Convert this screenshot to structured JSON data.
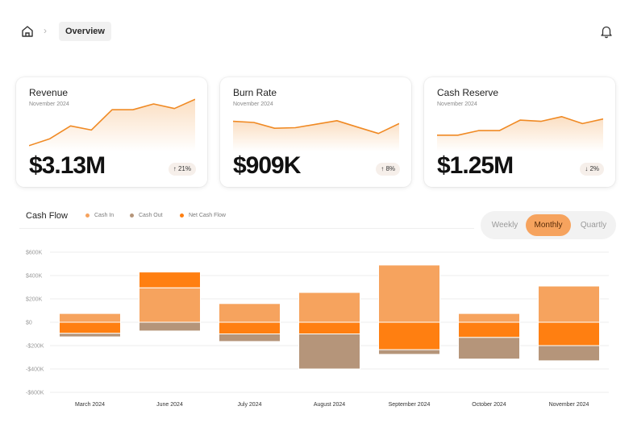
{
  "header": {
    "breadcrumb_current": "Overview",
    "icons": {
      "home": "home-icon",
      "separator": "chevron-right-icon",
      "notifications": "bell-icon"
    }
  },
  "kpis": [
    {
      "title": "Revenue",
      "subtitle": "November 2024",
      "value": "$3.13M",
      "change": "21%",
      "direction": "up",
      "arrow": "↑",
      "spark": [
        10,
        22,
        44,
        37,
        72,
        72,
        82,
        74,
        90
      ]
    },
    {
      "title": "Burn Rate",
      "subtitle": "November 2024",
      "value": "$909K",
      "change": "8%",
      "direction": "up",
      "arrow": "↑",
      "spark": [
        52,
        50,
        40,
        41,
        47,
        53,
        42,
        31,
        48
      ]
    },
    {
      "title": "Cash Reserve",
      "subtitle": "November 2024",
      "value": "$1.25M",
      "change": "2%",
      "direction": "down",
      "arrow": "↓",
      "spark": [
        28,
        28,
        36,
        36,
        54,
        52,
        60,
        48,
        56
      ]
    }
  ],
  "cash_flow": {
    "title": "Cash Flow",
    "legend": [
      {
        "label": "Cash In",
        "color": "#f6a35e"
      },
      {
        "label": "Cash Out",
        "color": "#b5957a"
      },
      {
        "label": "Net Cash Flow",
        "color": "#ff7f11"
      }
    ],
    "periods": [
      "Weekly",
      "Monthly",
      "Quartly"
    ],
    "active_period": "Monthly"
  },
  "colors": {
    "cash_in": "#f6a35e",
    "cash_out": "#b5957a",
    "net": "#ff7f11",
    "spark": "#f08a24"
  },
  "chart_data": {
    "type": "bar",
    "stacked": true,
    "categories": [
      "March 2024",
      "June 2024",
      "July 2024",
      "August 2024",
      "September 2024",
      "October 2024",
      "November 2024"
    ],
    "series": [
      {
        "name": "Cash In",
        "values": [
          75,
          295,
          160,
          255,
          490,
          75,
          310
        ]
      },
      {
        "name": "Net Cash Flow",
        "values": [
          -95,
          135,
          -100,
          -100,
          -235,
          -130,
          -200
        ]
      },
      {
        "name": "Cash Out",
        "values": [
          -30,
          -75,
          -65,
          -300,
          -40,
          -185,
          -130
        ]
      }
    ],
    "yticks": [
      600,
      400,
      200,
      0,
      -200,
      -400,
      -600
    ],
    "ytick_labels": [
      "$600K",
      "$400K",
      "$200K",
      "$0",
      "-$200K",
      "-$400K",
      "-$600K"
    ],
    "ylim": [
      -600,
      600
    ],
    "grid": true,
    "legend_position": "top-left"
  }
}
